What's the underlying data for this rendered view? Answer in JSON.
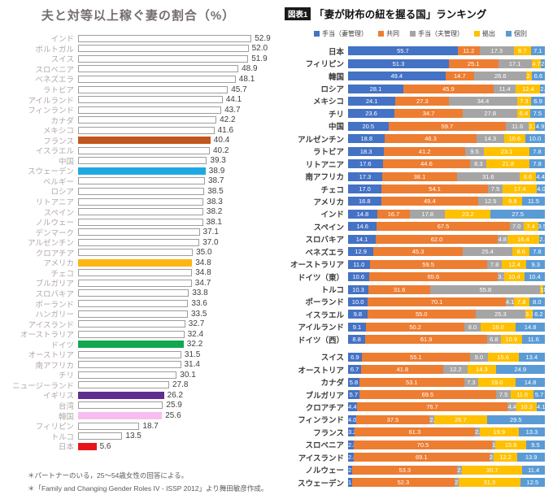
{
  "chart_data": [
    {
      "type": "bar",
      "orientation": "horizontal",
      "title": "夫と対等以上稼ぐ妻の割合（%）",
      "xlabel": "",
      "ylabel": "",
      "xlim": [
        0,
        53
      ],
      "grid": false,
      "categories": [
        "インド",
        "ポルトガル",
        "スイス",
        "スロベニア",
        "ベネズエラ",
        "ラトビア",
        "アイルランド",
        "フィンランド",
        "カナダ",
        "メキシコ",
        "フランス",
        "イスラエル",
        "中国",
        "スウェーデン",
        "ベルギー",
        "ロシア",
        "リトアニア",
        "スペイン",
        "ノルウェー",
        "デンマーク",
        "アルゼンチン",
        "クロアチア",
        "アメリカ",
        "チェコ",
        "ブルガリア",
        "スロバキア",
        "ポーランド",
        "ハンガリー",
        "アイスランド",
        "オーストラリア",
        "ドイツ",
        "オーストリア",
        "南アフリカ",
        "チリ",
        "ニュージーランド",
        "イギリス",
        "台湾",
        "韓国",
        "フィリピン",
        "トルコ",
        "日本"
      ],
      "values": [
        52.9,
        52.0,
        51.9,
        48.9,
        48.1,
        45.7,
        44.1,
        43.7,
        42.2,
        41.6,
        40.4,
        40.2,
        39.3,
        38.9,
        38.7,
        38.5,
        38.3,
        38.2,
        38.1,
        37.1,
        37.0,
        35.0,
        34.8,
        34.8,
        34.7,
        33.8,
        33.6,
        33.5,
        32.7,
        32.4,
        32.2,
        31.5,
        31.4,
        30.1,
        27.8,
        26.2,
        25.9,
        25.6,
        18.7,
        13.5,
        5.6
      ],
      "default_bar": {
        "fill": "#ffffff",
        "border": "#9d9d9d"
      },
      "highlights": {
        "フランス": "#c2571d",
        "スウェーデン": "#1fa9e2",
        "アメリカ": "#fcb514",
        "ドイツ": "#13a750",
        "イギリス": "#5f2d91",
        "韓国": "#f7bdf0",
        "日本": "#e8141c"
      },
      "footnotes": [
        "＊パートナーのいる，25～54歳女性の回答による。",
        "＊「Family and Changing Gender Roles IV - ISSP 2012」より舞田敏彦作成。"
      ]
    },
    {
      "type": "bar",
      "stacked": true,
      "orientation": "horizontal",
      "tag": "図表1",
      "title": "「妻が財布の紐を握る国」ランキング",
      "xlim": [
        0,
        100
      ],
      "grid": false,
      "legend_position": "top",
      "group_break_after": "ドイツ（西）",
      "categories": [
        "日本",
        "フィリピン",
        "韓国",
        "ロシア",
        "メキシコ",
        "チリ",
        "中国",
        "アルゼンチン",
        "ラトビア",
        "リトアニア",
        "南アフリカ",
        "チェコ",
        "アメリカ",
        "インド",
        "スペイン",
        "スロバキア",
        "ベネズエラ",
        "オーストラリア",
        "ドイツ（東）",
        "トルコ",
        "ポーランド",
        "イスラエル",
        "アイルランド",
        "ドイツ（西）",
        "スイス",
        "オーストリア",
        "カナダ",
        "ブルガリア",
        "クロアチア",
        "フィンランド",
        "フランス",
        "スロベニア",
        "アイスランド",
        "ノルウェー",
        "スウェーデン"
      ],
      "series": [
        {
          "name": "手当（妻管理）",
          "color": "#4472c4",
          "values": [
            55.7,
            51.3,
            49.4,
            28.1,
            24.1,
            23.6,
            20.5,
            18.8,
            18.3,
            17.6,
            17.3,
            17.0,
            16.8,
            14.8,
            14.6,
            14.1,
            12.9,
            11.0,
            10.6,
            10.3,
            10.0,
            9.8,
            9.1,
            8.8,
            6.9,
            6.7,
            5.8,
            5.7,
            4.4,
            4.0,
            3.2,
            2.8,
            2.8,
            2.2,
            1.9
          ]
        },
        {
          "name": "共同",
          "color": "#ed7d31",
          "values": [
            11.2,
            25.1,
            14.7,
            45.9,
            27.3,
            34.7,
            59.7,
            46.3,
            41.2,
            44.6,
            38.1,
            54.1,
            49.4,
            16.7,
            67.5,
            62.0,
            45.3,
            59.5,
            65.6,
            31.6,
            70.1,
            55.0,
            50.2,
            61.9,
            55.1,
            41.8,
            53.1,
            69.5,
            76.7,
            37.5,
            61.3,
            70.5,
            69.1,
            53.3,
            52.3
          ]
        },
        {
          "name": "手当（夫管理）",
          "color": "#a5a5a5",
          "values": [
            17.3,
            17.1,
            26.6,
            11.4,
            34.4,
            27.8,
            11.6,
            14.3,
            9.5,
            8.3,
            31.6,
            7.5,
            12.5,
            17.8,
            7.0,
            4.8,
            25.4,
            7.8,
            3.1,
            55.8,
            4.1,
            25.3,
            8.0,
            6.8,
            9.0,
            12.2,
            7.3,
            7.5,
            4.4,
            2.4,
            2.3,
            1.7,
            2.1,
            2.4,
            2.0
          ]
        },
        {
          "name": "拠出",
          "color": "#ffc000",
          "values": [
            8.7,
            4.7,
            2.7,
            12.4,
            7.3,
            6.4,
            3.3,
            10.6,
            23.1,
            21.8,
            8.6,
            17.4,
            9.9,
            23.2,
            7.4,
            16.4,
            8.6,
            12.4,
            10.4,
            1.3,
            7.8,
            3.7,
            18.0,
            10.9,
            15.6,
            14.3,
            19.0,
            11.6,
            10.3,
            26.7,
            19.9,
            15.6,
            12.2,
            30.7,
            31.3
          ]
        },
        {
          "name": "個別",
          "color": "#5b9bd5",
          "values": [
            7.1,
            2.0,
            6.6,
            2.3,
            6.9,
            7.5,
            4.9,
            10.0,
            7.8,
            7.8,
            4.4,
            4.0,
            11.5,
            27.5,
            3.5,
            2.8,
            7.8,
            9.3,
            10.4,
            1.0,
            8.0,
            6.2,
            14.8,
            11.6,
            13.4,
            24.9,
            14.8,
            5.7,
            4.1,
            29.5,
            13.3,
            9.5,
            13.9,
            11.4,
            12.5
          ]
        }
      ]
    }
  ]
}
